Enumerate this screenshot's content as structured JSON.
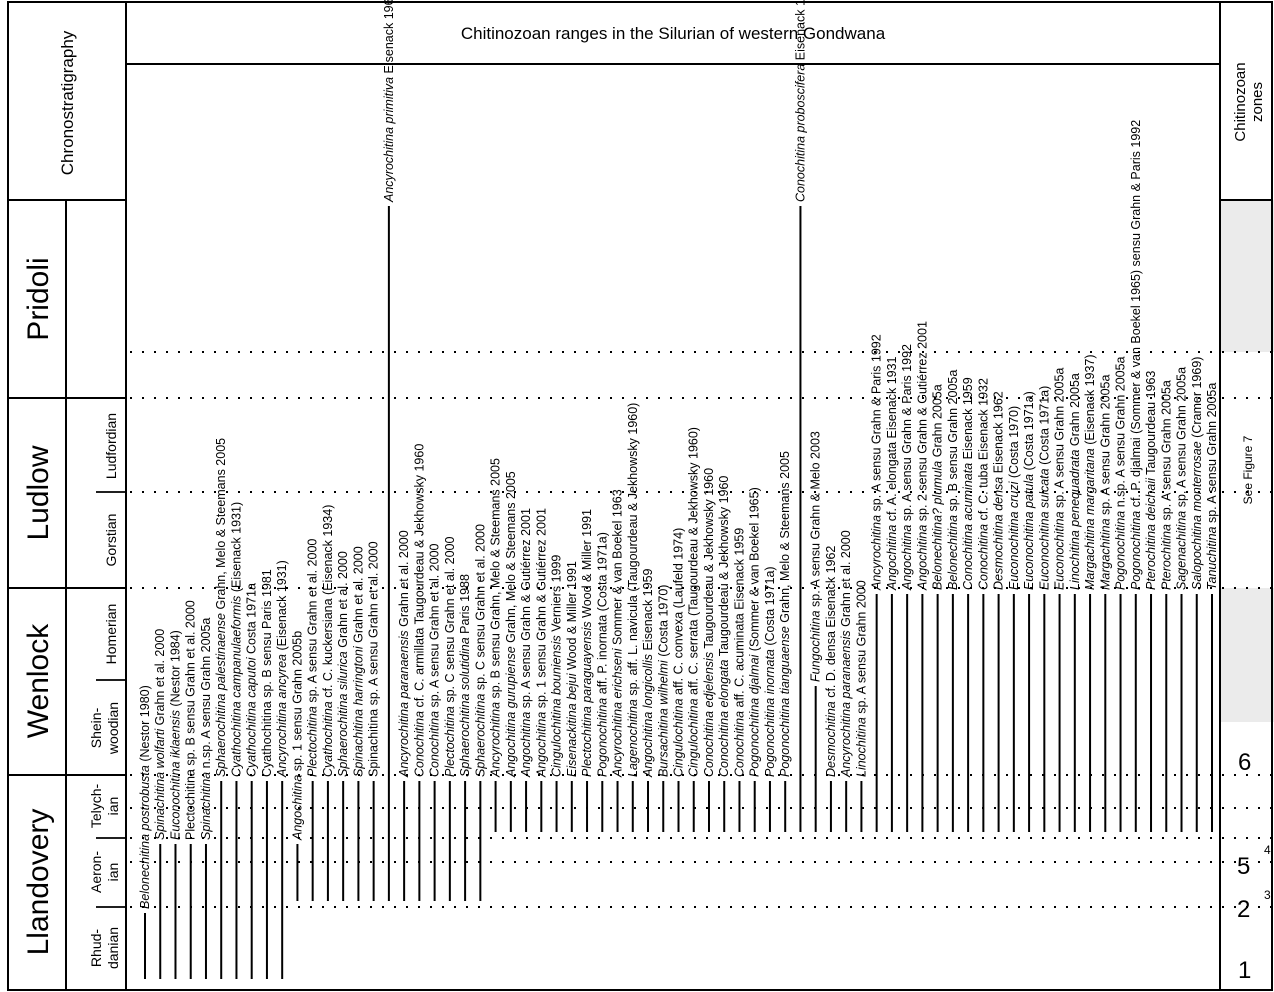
{
  "title": "Chitinozoan ranges in the Silurian of western Gondwana",
  "header_left": "Chronostratigraphy",
  "header_right_line1": "Chitinozoan",
  "header_right_line2": "zones",
  "series": [
    {
      "key": "pridoli",
      "name": "Pridoli"
    },
    {
      "key": "ludlow",
      "name": "Ludlow"
    },
    {
      "key": "wenlock",
      "name": "Wenlock"
    },
    {
      "key": "llandovery",
      "name": "Llandovery"
    }
  ],
  "stages": [
    {
      "key": "ludfordian",
      "lines": [
        "Ludfordian"
      ]
    },
    {
      "key": "gorstian",
      "lines": [
        "Gorstian"
      ]
    },
    {
      "key": "homerian",
      "lines": [
        "Homerian"
      ]
    },
    {
      "key": "sheinwoodian",
      "lines": [
        "Shein-",
        "woodian"
      ]
    },
    {
      "key": "telychian",
      "lines": [
        "Telych-",
        "ian"
      ]
    },
    {
      "key": "aeronian",
      "lines": [
        "Aeron-",
        "ian"
      ]
    },
    {
      "key": "rhuddanian",
      "lines": [
        "Rhud-",
        "danian"
      ]
    }
  ],
  "zones": {
    "see_figure": "See Figure 7",
    "labels": [
      {
        "key": "z6",
        "text": "6"
      },
      {
        "key": "z5",
        "text": "5"
      },
      {
        "key": "z4",
        "text": "4"
      },
      {
        "key": "z2",
        "text": "2"
      },
      {
        "key": "z3",
        "text": "3"
      },
      {
        "key": "z1",
        "text": "1"
      }
    ]
  },
  "chart_data": {
    "type": "range-chart",
    "taxa": [
      {
        "italic": "Belonechitina postrobusta",
        "rest": " (Nestor 1980)",
        "from": "rhuddanian",
        "to": "rhuddanian"
      },
      {
        "italic": "Spinachitina wolfarti",
        "rest": " Grahn et al. 2000",
        "from": "rhuddanian",
        "to": "aeronian"
      },
      {
        "italic": "Euconochitina iklaensis",
        "rest": " (Nestor 1984)",
        "from": "rhuddanian",
        "to": "aeronian"
      },
      {
        "italic": "",
        "rest": "Plectochitina sp. B sensu Grahn et al. 2000",
        "from": "rhuddanian",
        "to": "aeronian"
      },
      {
        "italic": "Spinachitina",
        "rest": " n.sp. A sensu Grahn 2005a",
        "from": "rhuddanian",
        "to": "aeronian"
      },
      {
        "italic": "Sphaerochitina palestinaense",
        "rest": " Grahn, Melo & Steemans 2005",
        "from": "rhuddanian",
        "to": "telychian"
      },
      {
        "italic": "Cyathochitina campanulaeformis",
        "rest": " (Eisenack 1931)",
        "from": "rhuddanian",
        "to": "telychian"
      },
      {
        "italic": "Cyathochitina caputoi",
        "rest": " Costa 1971a",
        "from": "rhuddanian",
        "to": "telychian"
      },
      {
        "italic": "",
        "rest": "Cyathochitina sp. B sensu Paris 1981",
        "from": "rhuddanian",
        "to": "telychian"
      },
      {
        "italic": "Ancyrochitina ancyrea",
        "rest": " (Eisenack 1931)",
        "from": "rhuddanian",
        "to": "telychian"
      },
      {
        "italic": "Angochitina",
        "rest": " sp. 1 sensu Grahn 2005b",
        "from": "aeronian",
        "to": "aeronian"
      },
      {
        "italic": "Plectochitina",
        "rest": " sp. A sensu Grahn et al. 2000",
        "from": "aeronian",
        "to": "telychian"
      },
      {
        "italic": "Cyathochitina",
        "rest": " cf. C. kuckersiana (Eisenack 1934)",
        "from": "aeronian",
        "to": "telychian"
      },
      {
        "italic": "Sphaerochitina silurica",
        "rest": " Grahn et al. 2000",
        "from": "aeronian",
        "to": "telychian"
      },
      {
        "italic": "Spinachitina harringtoni",
        "rest": " Grahn et al. 2000",
        "from": "aeronian",
        "to": "telychian"
      },
      {
        "italic": "",
        "rest": "Spinachitina sp. A sensu Grahn et al. 2000",
        "from": "aeronian",
        "to": "telychian"
      },
      {
        "italic": "Ancyrochitina primitiva",
        "rest": " Eisenack 1964",
        "from": "aeronian",
        "to": "pridoli"
      },
      {
        "italic": "Ancyrochitina paranaensis",
        "rest": " Grahn et al. 2000",
        "from": "aeronian",
        "to": "telychian"
      },
      {
        "italic": "Conochitina",
        "rest": " cf. C. armillata Taugourdeau & Jekhowsky 1960",
        "from": "aeronian",
        "to": "telychian"
      },
      {
        "italic": "Conochitina",
        "rest": " sp. A sensu Grahn et al. 2000",
        "from": "aeronian",
        "to": "telychian"
      },
      {
        "italic": "Plectochitina",
        "rest": " sp. C sensu Grahn et al. 2000",
        "from": "aeronian",
        "to": "telychian"
      },
      {
        "italic": "Sphaerochitina solutidina",
        "rest": " Paris 1988",
        "from": "aeronian",
        "to": "telychian"
      },
      {
        "italic": "Sphaerochitina",
        "rest": " sp. C sensu Grahn et al. 2000",
        "from": "aeronian",
        "to": "telychian"
      },
      {
        "italic": "Ancyrochitina",
        "rest": " sp. B sensu Grahn, Melo & Steemans 2005",
        "from": "telychian",
        "to": "telychian"
      },
      {
        "italic": "Angochitina gurupiense",
        "rest": " Grahn, Melo & Steemans 2005",
        "from": "telychian",
        "to": "telychian"
      },
      {
        "italic": "Angochitina",
        "rest": " sp. A sensu Grahn & Gutiérrez 2001",
        "from": "telychian",
        "to": "telychian"
      },
      {
        "italic": "Angochitina",
        "rest": " sp. 1 sensu Grahn & Gutiérrez 2001",
        "from": "telychian",
        "to": "telychian"
      },
      {
        "italic": "Cingulochitina bouniensis",
        "rest": " Verniers 1999",
        "from": "telychian",
        "to": "telychian"
      },
      {
        "italic": "Eisenackitina bejui",
        "rest": " Wood & Miller 1991",
        "from": "telychian",
        "to": "telychian"
      },
      {
        "italic": "Plectochitina paraguayensis",
        "rest": " Wood & Miller 1991",
        "from": "telychian",
        "to": "telychian"
      },
      {
        "italic": "Pogonochitina",
        "rest": " aff. P. inornata (Costa 1971a)",
        "from": "telychian",
        "to": "telychian"
      },
      {
        "italic": "Ancyrochitina erichseni",
        "rest": " Sommer & van Boekel 1963",
        "from": "telychian",
        "to": "telychian"
      },
      {
        "italic": "Lagenochitina",
        "rest": " sp. aff. L. navicula (Taugourdeau & Jekhowsky 1960)",
        "from": "telychian",
        "to": "telychian"
      },
      {
        "italic": "Angochitina longicollis",
        "rest": " Eisenack 1959",
        "from": "telychian",
        "to": "telychian"
      },
      {
        "italic": "Bursachitina wilhelmi",
        "rest": " (Costa 1970)",
        "from": "telychian",
        "to": "telychian"
      },
      {
        "italic": "Cingulochitina",
        "rest": " aff. C. convexa (Laufeld 1974)",
        "from": "telychian",
        "to": "telychian"
      },
      {
        "italic": "Cingulochitina",
        "rest": " aff. C. serrata (Taugourdeau & Jekhowsky 1960)",
        "from": "telychian",
        "to": "telychian"
      },
      {
        "italic": "Conochitina edjelensis",
        "rest": " Taugourdeau & Jekhowsky 1960",
        "from": "telychian",
        "to": "telychian"
      },
      {
        "italic": "Conochitina elongata",
        "rest": " Taugourdeau & Jekhowsky 1960",
        "from": "telychian",
        "to": "telychian"
      },
      {
        "italic": "Conochitina",
        "rest": " aff. C. acuminata Eisenack 1959",
        "from": "telychian",
        "to": "telychian"
      },
      {
        "italic": "Pogonochitina djalmai",
        "rest": " (Sommer & van Boekel 1965)",
        "from": "telychian",
        "to": "telychian"
      },
      {
        "italic": "Pogonochitina inornata",
        "rest": " (Costa 1971a)",
        "from": "telychian",
        "to": "telychian"
      },
      {
        "italic": "Pogonochitina tianguaense",
        "rest": " Grahn, Melo & Steemans 2005",
        "from": "telychian",
        "to": "telychian"
      },
      {
        "italic": "Conochitina proboscifera",
        "rest": " Eisenack 1937",
        "from": "telychian",
        "to": "pridoli"
      },
      {
        "italic": "Fungochitina",
        "rest": " sp. A sensu Grahn & Melo 2003",
        "from": "telychian",
        "to": "sheinwoodian"
      },
      {
        "italic": "Desmochitina",
        "rest": " cf. D. densa Eisenack 1962",
        "from": "telychian",
        "to": "telychian"
      },
      {
        "italic": "Ancyrochitina paranaensis",
        "rest": " Grahn et al. 2000",
        "from": "telychian",
        "to": "telychian"
      },
      {
        "italic": "Linochitina",
        "rest": " sp. A sensu Grahn 2000",
        "from": "telychian",
        "to": "telychian"
      },
      {
        "italic": "Ancyrochitina",
        "rest": " sp. A sensu Grahn & Paris 1992",
        "from": "telychian",
        "to": "homerian"
      },
      {
        "italic": "Angochitina",
        "rest": " cf. A. elongata Eisenack 1931",
        "from": "telychian",
        "to": "homerian"
      },
      {
        "italic": "Angochitina",
        "rest": " sp. A sensu Grahn & Paris 1992",
        "from": "telychian",
        "to": "homerian"
      },
      {
        "italic": "Angochitina",
        "rest": " sp. 2 sensu Grahn & Gutiérrez 2001",
        "from": "telychian",
        "to": "homerian"
      },
      {
        "italic": "Belonechitina? plumula",
        "rest": " Grahn 2005a",
        "from": "telychian",
        "to": "homerian"
      },
      {
        "italic": "Belonechitina",
        "rest": " sp. B sensu Grahn 2005a",
        "from": "telychian",
        "to": "homerian"
      },
      {
        "italic": "Conochitina acuminata",
        "rest": " Eisenack 1959",
        "from": "telychian",
        "to": "homerian"
      },
      {
        "italic": "Conochitina",
        "rest": " cf. C. tuba Eisenack 1932",
        "from": "telychian",
        "to": "homerian"
      },
      {
        "italic": "Desmochitina densa",
        "rest": " Eisenack 1962",
        "from": "telychian",
        "to": "homerian"
      },
      {
        "italic": "Euconochitina cruzi",
        "rest": " (Costa 1970)",
        "from": "telychian",
        "to": "homerian"
      },
      {
        "italic": "Euconochitina patula",
        "rest": " (Costa 1971a)",
        "from": "telychian",
        "to": "homerian"
      },
      {
        "italic": "Euconochitina sulcata",
        "rest": " (Costa 1971a)",
        "from": "telychian",
        "to": "homerian"
      },
      {
        "italic": "Euconochitina",
        "rest": " sp. A sensu Grahn 2005a",
        "from": "telychian",
        "to": "homerian"
      },
      {
        "italic": "Linochitina penequadrata",
        "rest": " Grahn 2005a",
        "from": "telychian",
        "to": "homerian"
      },
      {
        "italic": "Margachitina margaritana",
        "rest": " (Eisenack 1937)",
        "from": "telychian",
        "to": "homerian"
      },
      {
        "italic": "Margachitina",
        "rest": " sp. A sensu Grahn 2005a",
        "from": "telychian",
        "to": "homerian"
      },
      {
        "italic": "Pogonochitina",
        "rest": " n.sp. A sensu Grahn 2005a",
        "from": "telychian",
        "to": "homerian"
      },
      {
        "italic": "Pogonochitina",
        "rest": " cf. P. djalmai (Sommer & van Boekel 1965) sensu Grahn & Paris 1992",
        "from": "telychian",
        "to": "homerian"
      },
      {
        "italic": "Pterochitina deichaii",
        "rest": " Taugourdeau 1963",
        "from": "telychian",
        "to": "homerian"
      },
      {
        "italic": "Pterochitina",
        "rest": " sp. A sensu Grahn 2005a",
        "from": "telychian",
        "to": "homerian"
      },
      {
        "italic": "Sagenachitina",
        "rest": " sp. A sensu Grahn 2005a",
        "from": "telychian",
        "to": "homerian"
      },
      {
        "italic": "Salopochitina monterrosae",
        "rest": " (Cramer 1969)",
        "from": "telychian",
        "to": "homerian"
      },
      {
        "italic": "Tanuchitina",
        "rest": " sp. A sensu Grahn 2005a",
        "from": "telychian",
        "to": "homerian"
      }
    ]
  }
}
